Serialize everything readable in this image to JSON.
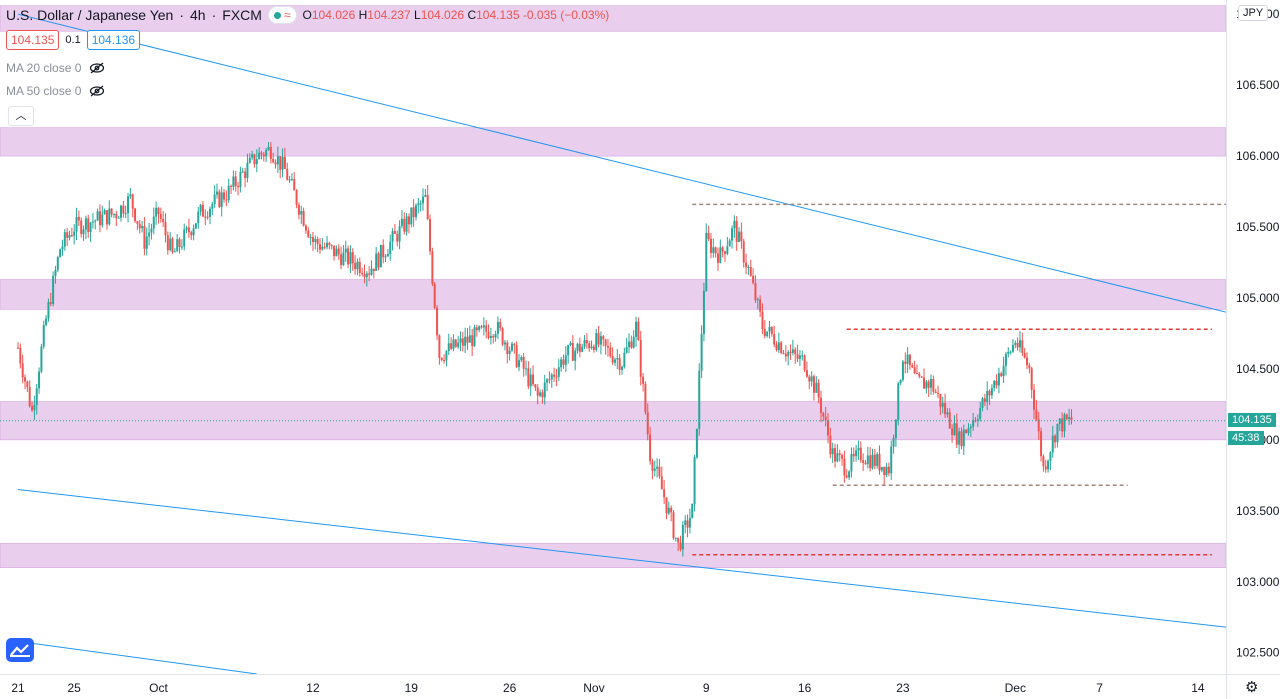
{
  "header": {
    "title": "U.S. Dollar / Japanese Yen",
    "interval": "4h",
    "source": "FXCM",
    "ohlc": {
      "o_label": "O",
      "o": "104.026",
      "h_label": "H",
      "h": "104.237",
      "l_label": "L",
      "l": "104.026",
      "c_label": "C",
      "c": "104.135",
      "change": "-0.035 (−0.03%)"
    },
    "sell_price": "104.135",
    "spread": "0.1",
    "buy_price": "104.136"
  },
  "indicators": [
    {
      "label": "MA 20 close 0",
      "visible": false
    },
    {
      "label": "MA 50 close 0",
      "visible": false
    }
  ],
  "price_axis": {
    "currency": "JPY",
    "ticks": [
      "107.000",
      "106.500",
      "106.000",
      "105.500",
      "105.000",
      "104.500",
      "104.000",
      "103.500",
      "103.000",
      "102.500"
    ],
    "last_price": "104.135",
    "countdown": "45:38"
  },
  "time_axis": {
    "ticks": [
      "21",
      "25",
      "Oct",
      "12",
      "19",
      "26",
      "Nov",
      "9",
      "16",
      "23",
      "Dec",
      "7",
      "14"
    ]
  },
  "colors": {
    "up": "#26a69a",
    "down": "#ef5350",
    "zone": "#e1bee7",
    "trendline": "#2196f3",
    "level_brown": "#a1887f",
    "level_red": "#e53935"
  },
  "chart_data": {
    "type": "candlestick",
    "symbol": "USDJPY",
    "y_range": [
      102.35,
      107.1
    ],
    "x_date_range": [
      "2020-09-21",
      "2020-12-16"
    ],
    "support_resistance_zones": [
      [
        106.88,
        107.06
      ],
      [
        106.0,
        106.2
      ],
      [
        104.92,
        105.13
      ],
      [
        104.0,
        104.27
      ],
      [
        103.1,
        103.27
      ]
    ],
    "trendlines": [
      {
        "start": [
          "2020-09-21",
          107.0
        ],
        "end": [
          "2020-12-16",
          104.9
        ]
      },
      {
        "start": [
          "2020-09-21",
          103.65
        ],
        "end": [
          "2020-12-16",
          102.68
        ]
      },
      {
        "start": [
          "2020-09-21",
          102.58
        ],
        "end": [
          "2020-10-08",
          102.35
        ]
      }
    ],
    "horizontal_levels": [
      {
        "start": "2020-11-08",
        "end": "2020-12-16",
        "price": 105.66,
        "color": "brown"
      },
      {
        "start": "2020-11-19",
        "end": "2020-12-15",
        "price": 104.78,
        "color": "red"
      },
      {
        "start": "2020-11-18",
        "end": "2020-12-09",
        "price": 103.68,
        "color": "brown"
      },
      {
        "start": "2020-11-08",
        "end": "2020-12-15",
        "price": 103.19,
        "color": "red"
      }
    ],
    "price_path": [
      [
        "2020-09-21",
        104.65
      ],
      [
        "2020-09-22",
        104.2
      ],
      [
        "2020-09-23",
        104.85
      ],
      [
        "2020-09-24",
        105.35
      ],
      [
        "2020-09-25",
        105.5
      ],
      [
        "2020-09-28",
        105.6
      ],
      [
        "2020-09-29",
        105.7
      ],
      [
        "2020-09-30",
        105.4
      ],
      [
        "2020-10-01",
        105.6
      ],
      [
        "2020-10-02",
        105.3
      ],
      [
        "2020-10-04",
        105.6
      ],
      [
        "2020-10-06",
        105.75
      ],
      [
        "2020-10-08",
        106.0
      ],
      [
        "2020-10-09",
        106.05
      ],
      [
        "2020-10-10",
        105.9
      ],
      [
        "2020-10-12",
        105.4
      ],
      [
        "2020-10-14",
        105.3
      ],
      [
        "2020-10-16",
        105.2
      ],
      [
        "2020-10-18",
        105.45
      ],
      [
        "2020-10-20",
        105.7
      ],
      [
        "2020-10-21",
        104.6
      ],
      [
        "2020-10-23",
        104.7
      ],
      [
        "2020-10-25",
        104.8
      ],
      [
        "2020-10-27",
        104.5
      ],
      [
        "2020-10-28",
        104.3
      ],
      [
        "2020-10-30",
        104.6
      ],
      [
        "2020-11-01",
        104.7
      ],
      [
        "2020-11-03",
        104.55
      ],
      [
        "2020-11-04",
        104.8
      ],
      [
        "2020-11-05",
        103.9
      ],
      [
        "2020-11-06",
        103.6
      ],
      [
        "2020-11-07",
        103.25
      ],
      [
        "2020-11-08",
        103.5
      ],
      [
        "2020-11-09",
        105.4
      ],
      [
        "2020-11-10",
        105.3
      ],
      [
        "2020-11-11",
        105.5
      ],
      [
        "2020-11-12",
        105.2
      ],
      [
        "2020-11-13",
        104.8
      ],
      [
        "2020-11-15",
        104.6
      ],
      [
        "2020-11-16",
        104.55
      ],
      [
        "2020-11-17",
        104.3
      ],
      [
        "2020-11-18",
        103.9
      ],
      [
        "2020-11-19",
        103.8
      ],
      [
        "2020-11-20",
        103.9
      ],
      [
        "2020-11-22",
        103.8
      ],
      [
        "2020-11-23",
        104.6
      ],
      [
        "2020-11-24",
        104.4
      ],
      [
        "2020-11-25",
        104.4
      ],
      [
        "2020-11-26",
        104.2
      ],
      [
        "2020-11-27",
        104.0
      ],
      [
        "2020-11-29",
        104.3
      ],
      [
        "2020-11-30",
        104.5
      ],
      [
        "2020-12-01",
        104.7
      ],
      [
        "2020-12-02",
        104.5
      ],
      [
        "2020-12-03",
        103.8
      ],
      [
        "2020-12-04",
        104.1
      ],
      [
        "2020-12-05",
        104.14
      ]
    ]
  }
}
